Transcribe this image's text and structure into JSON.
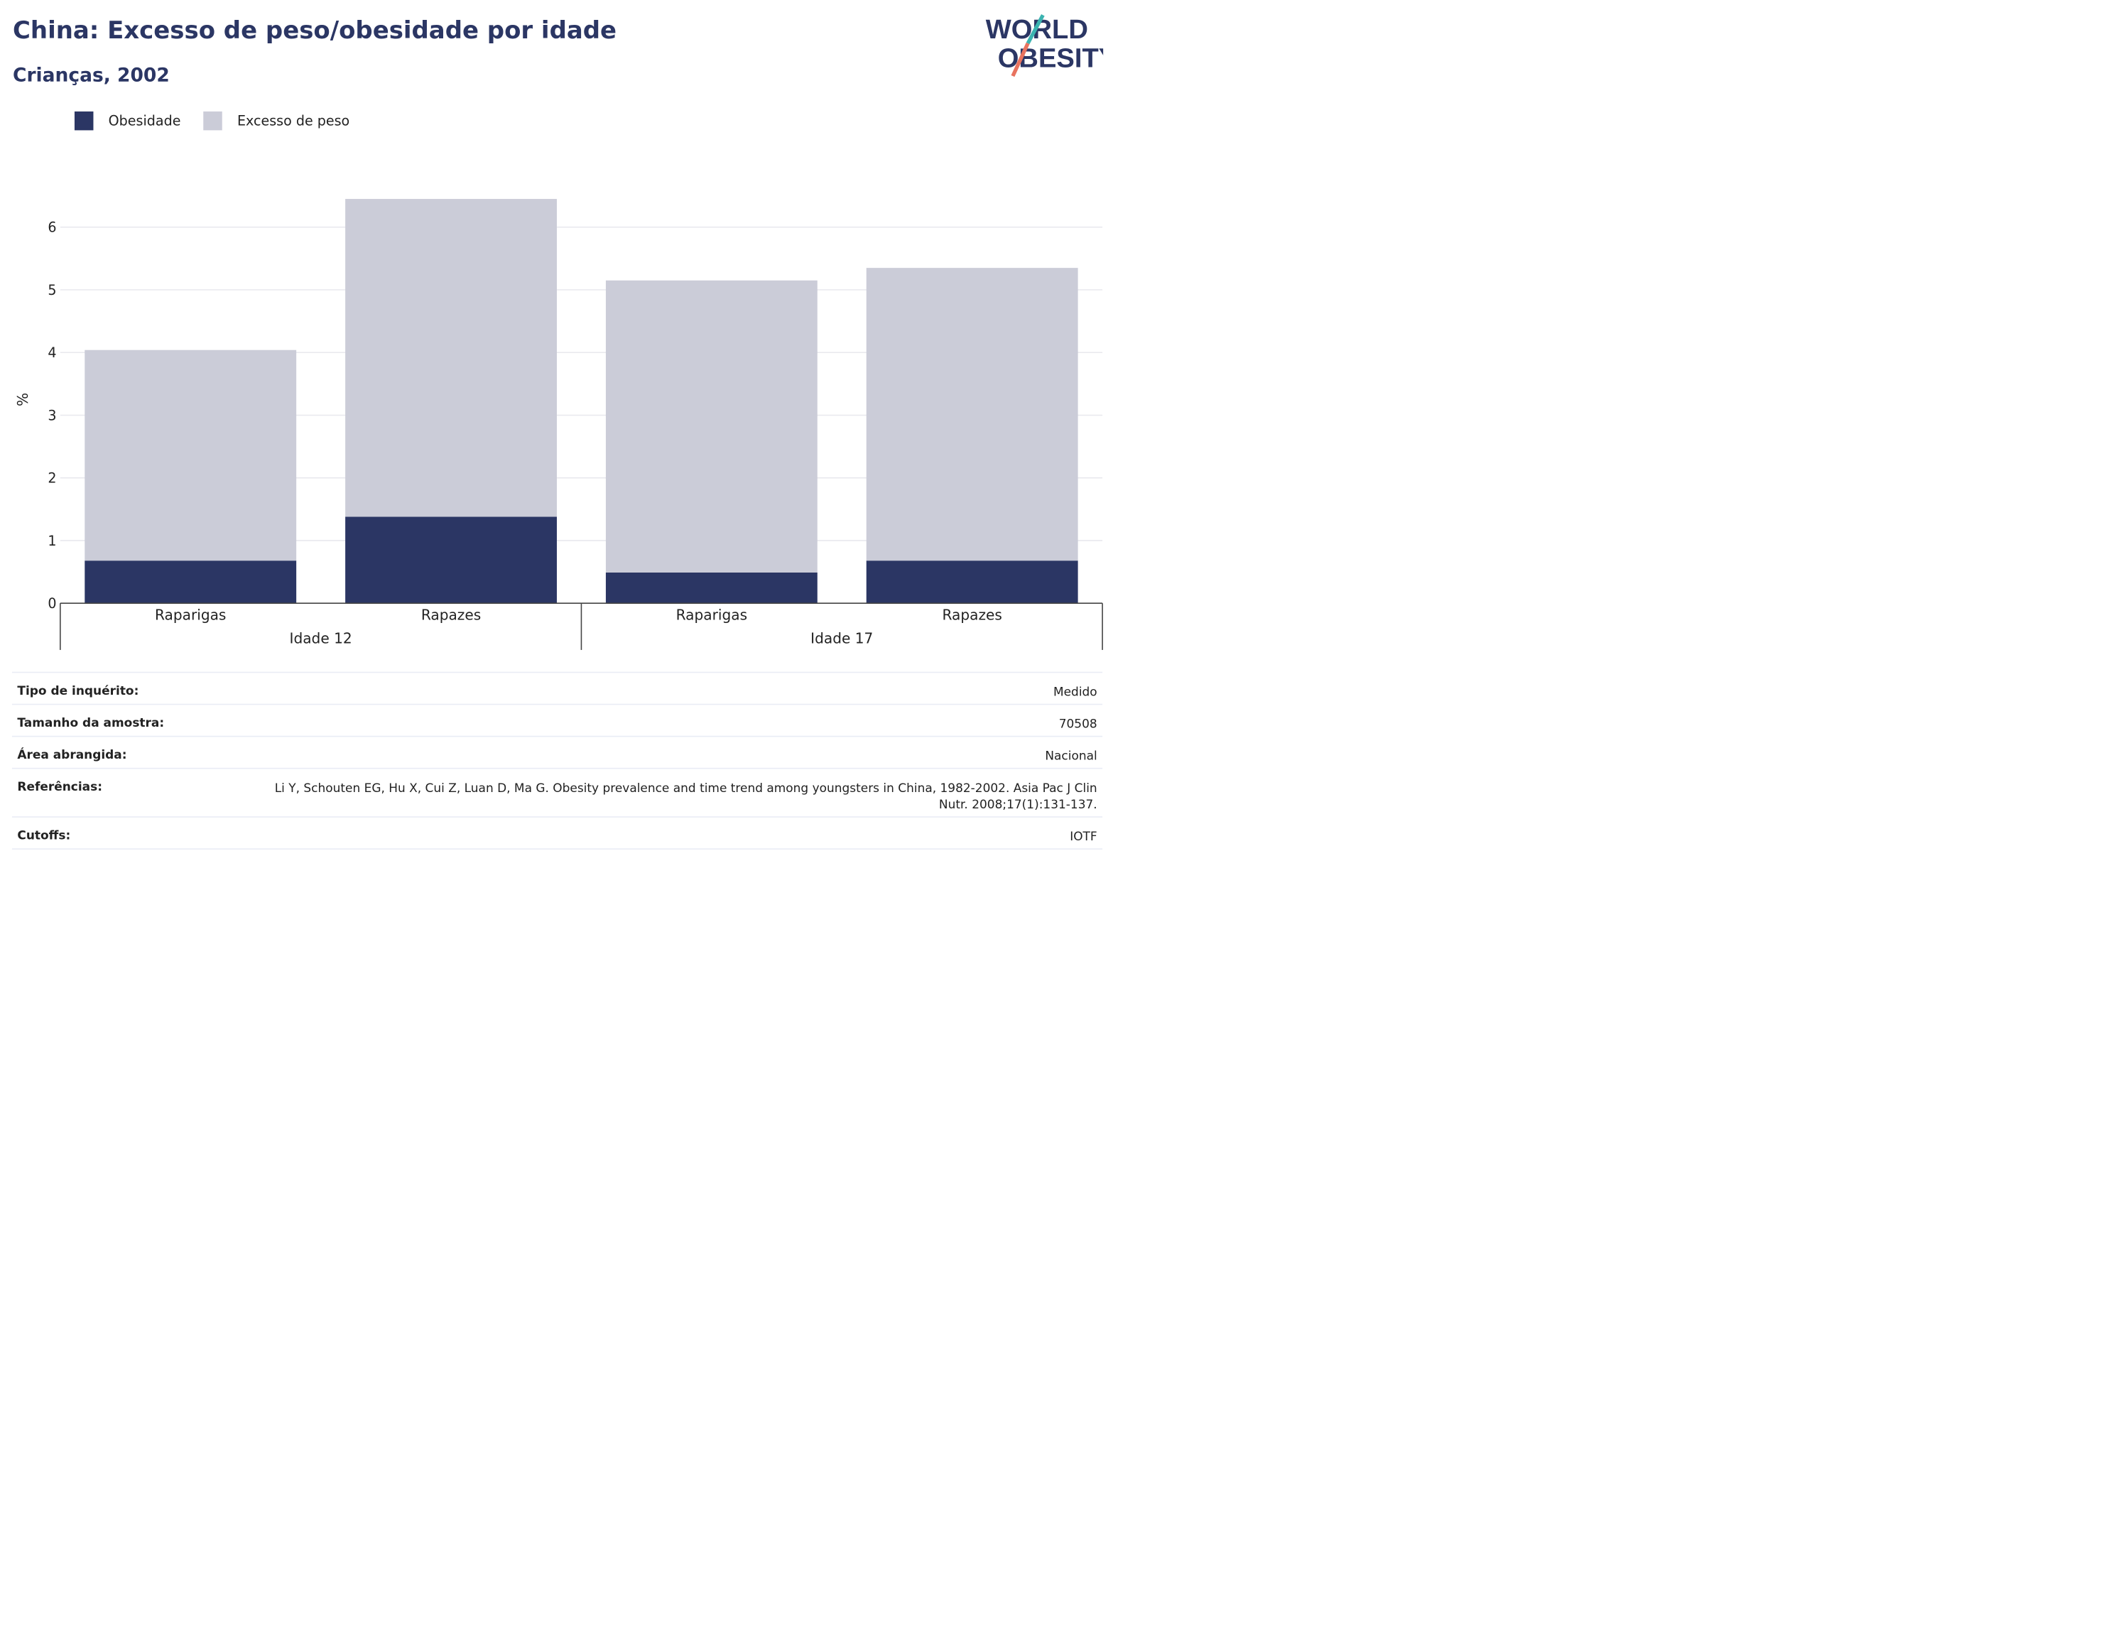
{
  "header": {
    "title": "China: Excesso de peso/obesidade por idade",
    "subtitle": "Crianças, 2002"
  },
  "logo": {
    "line1": "WORLD",
    "line2": "OBESITY"
  },
  "legend": [
    {
      "label": "Obesidade",
      "color": "#2b3664"
    },
    {
      "label": "Excesso de peso",
      "color": "#cbccd8"
    }
  ],
  "chart_data": {
    "type": "bar",
    "stacked": true,
    "ylabel": "%",
    "ylim": [
      0,
      6.5
    ],
    "yticks": [
      0,
      1,
      2,
      3,
      4,
      5,
      6
    ],
    "grid": true,
    "categories": [
      "Raparigas",
      "Rapazes",
      "Raparigas",
      "Rapazes"
    ],
    "groups": [
      {
        "label": "Idade 12",
        "categories": [
          0,
          1
        ]
      },
      {
        "label": "Idade 17",
        "categories": [
          2,
          3
        ]
      }
    ],
    "series": [
      {
        "name": "Obesidade",
        "color": "#2b3664",
        "values": [
          0.68,
          1.38,
          0.49,
          0.68
        ]
      },
      {
        "name": "Excesso de peso",
        "color": "#cbccd8",
        "values": [
          3.36,
          5.07,
          4.66,
          4.67
        ]
      }
    ]
  },
  "info": [
    {
      "label": "Tipo de inquérito:",
      "value": "Medido"
    },
    {
      "label": "Tamanho da amostra:",
      "value": "70508"
    },
    {
      "label": "Área abrangida:",
      "value": "Nacional"
    },
    {
      "label": "Referências:",
      "value": "Li Y, Schouten EG, Hu X, Cui Z, Luan D, Ma G. Obesity prevalence and time trend among youngsters in China, 1982-2002. Asia Pac J Clin Nutr. 2008;17(1):131-137."
    },
    {
      "label": "Cutoffs:",
      "value": "IOTF"
    }
  ]
}
